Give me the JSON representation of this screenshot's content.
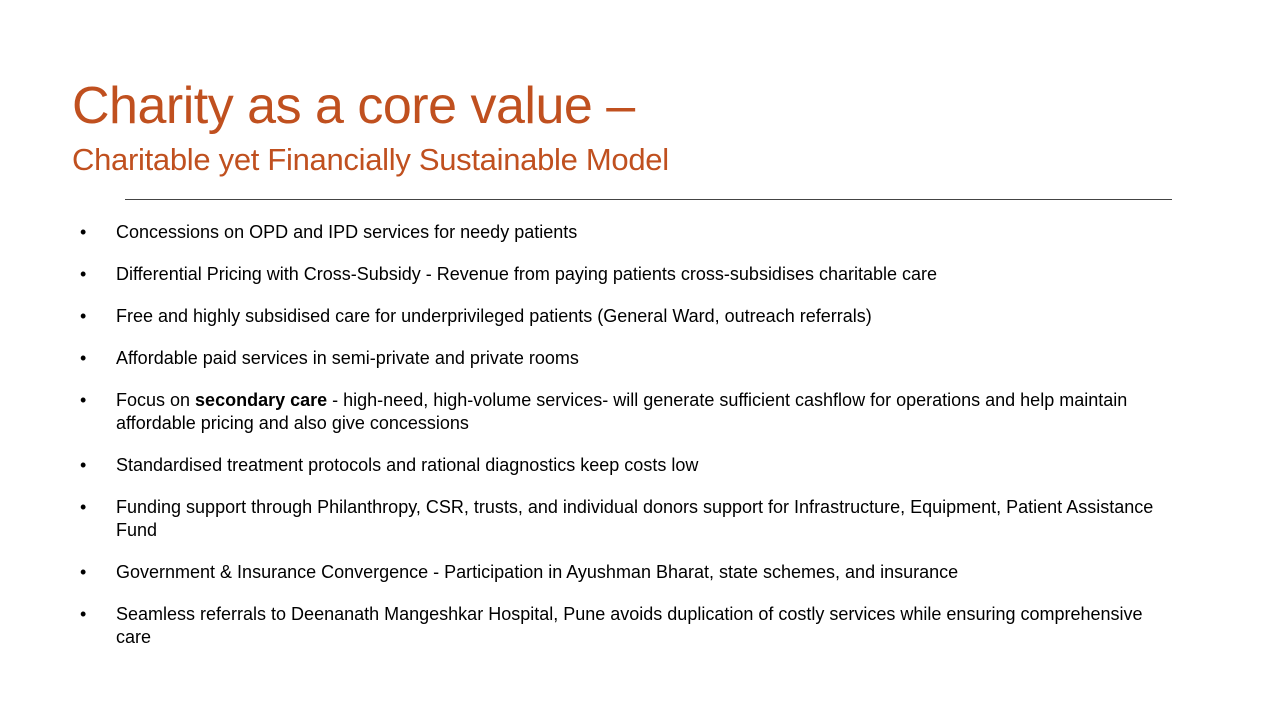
{
  "slide": {
    "title": "Charity as a core value –",
    "subtitle": "Charitable yet Financially Sustainable Model",
    "accent_color": "#C0501F",
    "bullet_glyph": "•",
    "bullets": [
      {
        "text": "Concessions on OPD and IPD services for needy patients"
      },
      {
        "text": "Differential Pricing with Cross-Subsidy - Revenue from paying patients cross-subsidises charitable care"
      },
      {
        "text": "Free and highly subsidised care for underprivileged patients (General Ward, outreach referrals)"
      },
      {
        "text": "Affordable paid services in semi-private and private rooms"
      },
      {
        "prefix": "Focus on ",
        "bold": "secondary care",
        "text": " - high-need, high-volume services-  will generate sufficient cashflow for operations and help maintain affordable pricing and also give concessions"
      },
      {
        "text": "Standardised treatment protocols and rational diagnostics keep costs low"
      },
      {
        "text": "Funding support through Philanthropy, CSR, trusts, and individual donors support for Infrastructure, Equipment, Patient Assistance Fund"
      },
      {
        "text": "Government & Insurance Convergence - Participation in Ayushman Bharat, state schemes, and insurance"
      },
      {
        "text": "Seamless referrals to Deenanath Mangeshkar Hospital, Pune avoids duplication of costly services while ensuring comprehensive care"
      }
    ]
  }
}
